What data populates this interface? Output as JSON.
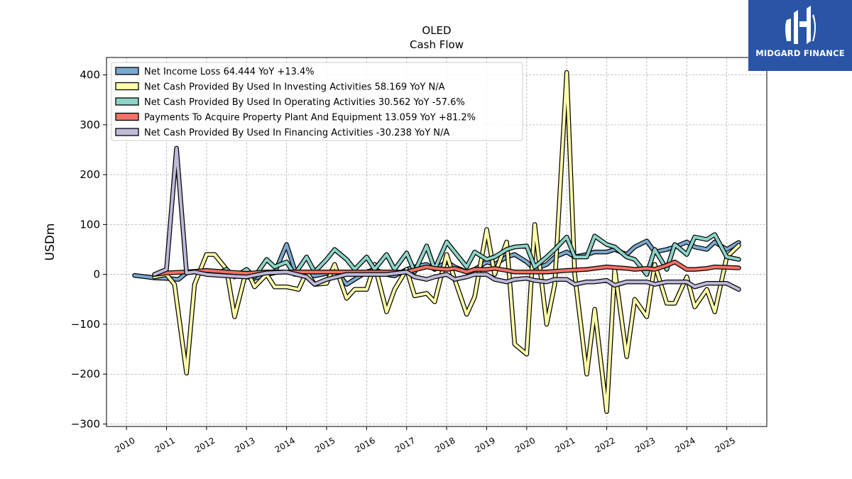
{
  "brand": {
    "name": "MIDGARD FINANCE",
    "color": "#2a55a6"
  },
  "chart_data": {
    "type": "line",
    "title": "OLED",
    "subtitle": "Cash Flow",
    "ylabel": "USDm",
    "xlabel": "",
    "xlim": [
      2009.5,
      2026
    ],
    "ylim": [
      -305,
      435
    ],
    "yticks": [
      -300,
      -200,
      -100,
      0,
      100,
      200,
      300,
      400
    ],
    "xticks": [
      2010,
      2011,
      2012,
      2013,
      2014,
      2015,
      2016,
      2017,
      2018,
      2019,
      2020,
      2021,
      2022,
      2023,
      2024,
      2025
    ],
    "grid": true,
    "legend_position": "top-left",
    "series": [
      {
        "name": "Net Income Loss",
        "legend": "Net Income Loss  64.444 YoY +13.4%",
        "color": "#7ba8cf",
        "points": [
          [
            2010.2,
            -2
          ],
          [
            2010.5,
            -5
          ],
          [
            2010.7,
            -7
          ],
          [
            2011.0,
            -8
          ],
          [
            2011.3,
            -10
          ],
          [
            2011.5,
            3
          ],
          [
            2011.7,
            5
          ],
          [
            2012.0,
            8
          ],
          [
            2012.2,
            5
          ],
          [
            2012.5,
            0
          ],
          [
            2012.7,
            -3
          ],
          [
            2013.0,
            -5
          ],
          [
            2013.2,
            -8
          ],
          [
            2013.5,
            0
          ],
          [
            2013.7,
            3
          ],
          [
            2014.0,
            60
          ],
          [
            2014.2,
            10
          ],
          [
            2014.5,
            0
          ],
          [
            2014.7,
            -3
          ],
          [
            2015.0,
            2
          ],
          [
            2015.2,
            10
          ],
          [
            2015.5,
            -20
          ],
          [
            2015.7,
            -10
          ],
          [
            2016.0,
            5
          ],
          [
            2016.2,
            10
          ],
          [
            2016.5,
            0
          ],
          [
            2016.7,
            -3
          ],
          [
            2017.0,
            10
          ],
          [
            2017.2,
            15
          ],
          [
            2017.5,
            20
          ],
          [
            2017.7,
            10
          ],
          [
            2018.0,
            25
          ],
          [
            2018.2,
            15
          ],
          [
            2018.5,
            5
          ],
          [
            2018.7,
            10
          ],
          [
            2019.0,
            25
          ],
          [
            2019.2,
            20
          ],
          [
            2019.5,
            35
          ],
          [
            2019.7,
            40
          ],
          [
            2020.0,
            25
          ],
          [
            2020.2,
            10
          ],
          [
            2020.5,
            20
          ],
          [
            2020.7,
            35
          ],
          [
            2021.0,
            45
          ],
          [
            2021.2,
            35
          ],
          [
            2021.5,
            40
          ],
          [
            2021.7,
            45
          ],
          [
            2022.0,
            45
          ],
          [
            2022.2,
            50
          ],
          [
            2022.5,
            40
          ],
          [
            2022.7,
            55
          ],
          [
            2023.0,
            67
          ],
          [
            2023.2,
            45
          ],
          [
            2023.5,
            50
          ],
          [
            2023.7,
            55
          ],
          [
            2024.0,
            65
          ],
          [
            2024.2,
            55
          ],
          [
            2024.5,
            50
          ],
          [
            2024.7,
            65
          ],
          [
            2025.0,
            50
          ],
          [
            2025.3,
            64
          ]
        ]
      },
      {
        "name": "Net Cash Provided By Used In Investing Activities",
        "legend": "Net Cash Provided By Used In Investing Activities  58.169 YoY N/A",
        "color": "#fffdaa",
        "points": [
          [
            2010.7,
            -5
          ],
          [
            2011.0,
            0
          ],
          [
            2011.2,
            -20
          ],
          [
            2011.5,
            -198
          ],
          [
            2011.7,
            -20
          ],
          [
            2012.0,
            40
          ],
          [
            2012.2,
            40
          ],
          [
            2012.5,
            10
          ],
          [
            2012.7,
            -85
          ],
          [
            2013.0,
            10
          ],
          [
            2013.2,
            -25
          ],
          [
            2013.5,
            0
          ],
          [
            2013.7,
            -25
          ],
          [
            2014.0,
            -25
          ],
          [
            2014.3,
            -30
          ],
          [
            2014.5,
            5
          ],
          [
            2014.7,
            -20
          ],
          [
            2015.0,
            -18
          ],
          [
            2015.2,
            20
          ],
          [
            2015.5,
            -48
          ],
          [
            2015.7,
            -30
          ],
          [
            2016.0,
            -30
          ],
          [
            2016.2,
            20
          ],
          [
            2016.5,
            -75
          ],
          [
            2016.7,
            -30
          ],
          [
            2017.0,
            10
          ],
          [
            2017.2,
            -43
          ],
          [
            2017.5,
            -38
          ],
          [
            2017.7,
            -55
          ],
          [
            2018.0,
            40
          ],
          [
            2018.2,
            -10
          ],
          [
            2018.5,
            -80
          ],
          [
            2018.7,
            -45
          ],
          [
            2019.0,
            90
          ],
          [
            2019.2,
            0
          ],
          [
            2019.5,
            65
          ],
          [
            2019.7,
            -140
          ],
          [
            2020.0,
            -160
          ],
          [
            2020.2,
            100
          ],
          [
            2020.5,
            -100
          ],
          [
            2020.7,
            -20
          ],
          [
            2021.0,
            405
          ],
          [
            2021.2,
            0
          ],
          [
            2021.5,
            -200
          ],
          [
            2021.7,
            -70
          ],
          [
            2022.0,
            -275
          ],
          [
            2022.2,
            10
          ],
          [
            2022.5,
            -165
          ],
          [
            2022.7,
            -50
          ],
          [
            2023.0,
            -85
          ],
          [
            2023.2,
            20
          ],
          [
            2023.5,
            -58
          ],
          [
            2023.7,
            -58
          ],
          [
            2024.0,
            -5
          ],
          [
            2024.2,
            -65
          ],
          [
            2024.5,
            -30
          ],
          [
            2024.7,
            -75
          ],
          [
            2025.0,
            35
          ],
          [
            2025.3,
            58
          ]
        ]
      },
      {
        "name": "Net Cash Provided By Used In Operating Activities",
        "legend": "Net Cash Provided By Used In Operating Activities  30.562 YoY -57.6%",
        "color": "#8dd3c7",
        "points": [
          [
            2012.0,
            5
          ],
          [
            2012.2,
            0
          ],
          [
            2012.5,
            10
          ],
          [
            2012.7,
            -5
          ],
          [
            2013.0,
            10
          ],
          [
            2013.2,
            -5
          ],
          [
            2013.5,
            30
          ],
          [
            2013.7,
            15
          ],
          [
            2014.0,
            25
          ],
          [
            2014.2,
            0
          ],
          [
            2014.5,
            35
          ],
          [
            2014.7,
            5
          ],
          [
            2015.0,
            30
          ],
          [
            2015.2,
            50
          ],
          [
            2015.5,
            30
          ],
          [
            2015.7,
            10
          ],
          [
            2016.0,
            35
          ],
          [
            2016.2,
            10
          ],
          [
            2016.5,
            40
          ],
          [
            2016.7,
            10
          ],
          [
            2017.0,
            43
          ],
          [
            2017.2,
            5
          ],
          [
            2017.5,
            57
          ],
          [
            2017.7,
            10
          ],
          [
            2018.0,
            65
          ],
          [
            2018.2,
            45
          ],
          [
            2018.5,
            15
          ],
          [
            2018.7,
            45
          ],
          [
            2019.0,
            30
          ],
          [
            2019.2,
            35
          ],
          [
            2019.5,
            50
          ],
          [
            2019.7,
            55
          ],
          [
            2020.0,
            57
          ],
          [
            2020.2,
            15
          ],
          [
            2020.5,
            35
          ],
          [
            2020.7,
            50
          ],
          [
            2021.0,
            75
          ],
          [
            2021.2,
            35
          ],
          [
            2021.5,
            35
          ],
          [
            2021.7,
            77
          ],
          [
            2022.0,
            60
          ],
          [
            2022.2,
            55
          ],
          [
            2022.5,
            35
          ],
          [
            2022.7,
            30
          ],
          [
            2023.0,
            0
          ],
          [
            2023.2,
            50
          ],
          [
            2023.5,
            10
          ],
          [
            2023.7,
            60
          ],
          [
            2024.0,
            40
          ],
          [
            2024.2,
            75
          ],
          [
            2024.5,
            70
          ],
          [
            2024.7,
            80
          ],
          [
            2025.0,
            35
          ],
          [
            2025.3,
            30
          ]
        ]
      },
      {
        "name": "Payments To Acquire Property Plant And Equipment",
        "legend": "Payments To Acquire Property Plant And Equipment  13.059 YoY +81.2%",
        "color": "#f47265",
        "points": [
          [
            2010.7,
            0
          ],
          [
            2011.0,
            3
          ],
          [
            2011.5,
            5
          ],
          [
            2012.0,
            8
          ],
          [
            2012.5,
            5
          ],
          [
            2013.0,
            2
          ],
          [
            2013.5,
            5
          ],
          [
            2014.0,
            5
          ],
          [
            2014.5,
            5
          ],
          [
            2015.0,
            5
          ],
          [
            2015.5,
            5
          ],
          [
            2016.0,
            5
          ],
          [
            2016.5,
            5
          ],
          [
            2017.0,
            5
          ],
          [
            2017.5,
            15
          ],
          [
            2017.7,
            12
          ],
          [
            2018.0,
            10
          ],
          [
            2018.2,
            12
          ],
          [
            2018.5,
            5
          ],
          [
            2018.7,
            10
          ],
          [
            2019.0,
            10
          ],
          [
            2019.2,
            12
          ],
          [
            2019.5,
            8
          ],
          [
            2019.7,
            5
          ],
          [
            2020.0,
            5
          ],
          [
            2020.5,
            5
          ],
          [
            2021.0,
            8
          ],
          [
            2021.5,
            10
          ],
          [
            2021.7,
            12
          ],
          [
            2022.0,
            15
          ],
          [
            2022.5,
            12
          ],
          [
            2022.7,
            10
          ],
          [
            2023.0,
            12
          ],
          [
            2023.2,
            10
          ],
          [
            2023.5,
            18
          ],
          [
            2023.7,
            25
          ],
          [
            2024.0,
            10
          ],
          [
            2024.2,
            10
          ],
          [
            2024.5,
            12
          ],
          [
            2024.7,
            15
          ],
          [
            2025.0,
            14
          ],
          [
            2025.3,
            13
          ]
        ]
      },
      {
        "name": "Net Cash Provided By Used In Financing Activities",
        "legend": "Net Cash Provided By Used In Financing Activities  -30.238 YoY N/A",
        "color": "#bebada",
        "points": [
          [
            2010.7,
            0
          ],
          [
            2011.0,
            10
          ],
          [
            2011.25,
            253
          ],
          [
            2011.5,
            3
          ],
          [
            2011.7,
            5
          ],
          [
            2012.0,
            0
          ],
          [
            2012.5,
            -3
          ],
          [
            2013.0,
            -5
          ],
          [
            2013.5,
            3
          ],
          [
            2014.0,
            5
          ],
          [
            2014.5,
            -5
          ],
          [
            2014.7,
            -20
          ],
          [
            2015.0,
            -10
          ],
          [
            2015.5,
            0
          ],
          [
            2016.0,
            0
          ],
          [
            2016.5,
            0
          ],
          [
            2017.0,
            5
          ],
          [
            2017.2,
            -5
          ],
          [
            2017.5,
            -10
          ],
          [
            2017.7,
            -5
          ],
          [
            2018.0,
            0
          ],
          [
            2018.2,
            -10
          ],
          [
            2018.5,
            -5
          ],
          [
            2018.7,
            0
          ],
          [
            2019.0,
            0
          ],
          [
            2019.2,
            -10
          ],
          [
            2019.5,
            -15
          ],
          [
            2019.7,
            -10
          ],
          [
            2020.0,
            -8
          ],
          [
            2020.2,
            -12
          ],
          [
            2020.5,
            -15
          ],
          [
            2020.7,
            -10
          ],
          [
            2021.0,
            -10
          ],
          [
            2021.2,
            -20
          ],
          [
            2021.5,
            -15
          ],
          [
            2021.7,
            -15
          ],
          [
            2022.0,
            -12
          ],
          [
            2022.2,
            -22
          ],
          [
            2022.5,
            -15
          ],
          [
            2022.7,
            -15
          ],
          [
            2023.0,
            -15
          ],
          [
            2023.2,
            -20
          ],
          [
            2023.5,
            -15
          ],
          [
            2023.7,
            -15
          ],
          [
            2024.0,
            -15
          ],
          [
            2024.2,
            -25
          ],
          [
            2024.5,
            -18
          ],
          [
            2024.7,
            -18
          ],
          [
            2025.0,
            -18
          ],
          [
            2025.3,
            -30
          ]
        ]
      }
    ]
  }
}
